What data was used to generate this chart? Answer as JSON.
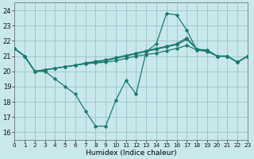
{
  "xlabel": "Humidex (Indice chaleur)",
  "xlim": [
    0,
    23
  ],
  "ylim": [
    15.5,
    24.5
  ],
  "yticks": [
    16,
    17,
    18,
    19,
    20,
    21,
    22,
    23,
    24
  ],
  "xticks": [
    0,
    1,
    2,
    3,
    4,
    5,
    6,
    7,
    8,
    9,
    10,
    11,
    12,
    13,
    14,
    15,
    16,
    17,
    18,
    19,
    20,
    21,
    22,
    23
  ],
  "bg_color": "#c8e8ec",
  "grid_color": "#a0c8cc",
  "line_color": "#1a7a6e",
  "lines": [
    [
      21.5,
      21.0,
      20.0,
      20.0,
      19.5,
      19.0,
      18.5,
      17.4,
      16.4,
      16.4,
      18.1,
      19.4,
      18.5,
      21.3,
      21.8,
      23.8,
      23.7,
      22.7,
      21.4,
      21.4,
      21.0,
      21.0,
      20.6,
      21.0
    ],
    [
      21.5,
      21.0,
      20.0,
      20.1,
      20.2,
      20.3,
      20.4,
      20.5,
      20.55,
      20.6,
      20.7,
      20.85,
      21.0,
      21.1,
      21.2,
      21.35,
      21.5,
      21.7,
      21.4,
      21.3,
      21.0,
      21.0,
      20.6,
      21.0
    ],
    [
      21.5,
      21.0,
      20.0,
      20.1,
      20.2,
      20.3,
      20.4,
      20.5,
      20.6,
      20.7,
      20.85,
      21.0,
      21.15,
      21.3,
      21.45,
      21.6,
      21.75,
      22.1,
      21.45,
      21.4,
      21.0,
      21.0,
      20.6,
      21.0
    ],
    [
      21.5,
      21.0,
      20.0,
      20.1,
      20.2,
      20.3,
      20.4,
      20.55,
      20.65,
      20.75,
      20.9,
      21.05,
      21.2,
      21.35,
      21.5,
      21.65,
      21.8,
      22.2,
      21.45,
      21.35,
      21.0,
      21.0,
      20.6,
      21.0
    ]
  ]
}
